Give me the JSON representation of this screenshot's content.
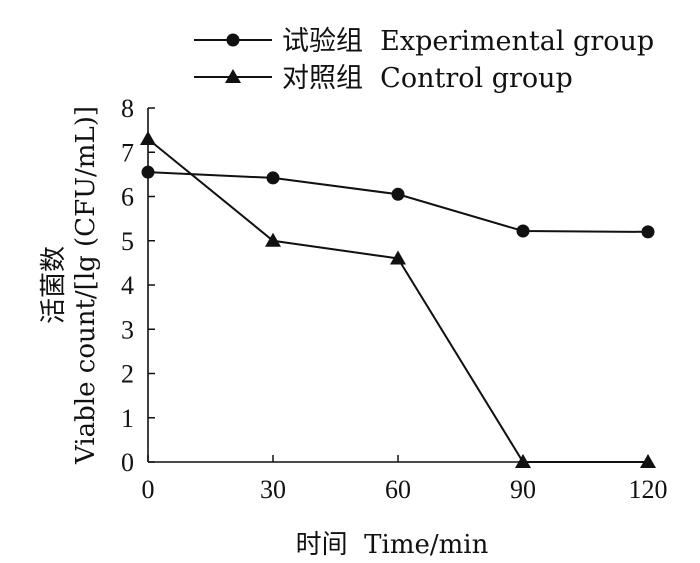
{
  "chart_data": {
    "type": "line",
    "x": [
      0,
      30,
      60,
      90,
      120
    ],
    "xticks": [
      "0",
      "30",
      "60",
      "90",
      "120"
    ],
    "yticks": [
      "0",
      "1",
      "2",
      "3",
      "4",
      "5",
      "6",
      "7",
      "8"
    ],
    "xlim": [
      0,
      120
    ],
    "ylim": [
      0,
      8
    ],
    "xlabel": "时间  Time/min",
    "ylabel_cn": "活菌数",
    "ylabel_en": "Viable count/[lg (CFU/mL)]",
    "grid": false,
    "legend_position": "top",
    "series": [
      {
        "name": "试验组  Experimental group",
        "marker": "circle",
        "color": "#111111",
        "values": [
          6.55,
          6.42,
          6.05,
          5.22,
          5.2
        ]
      },
      {
        "name": "对照组  Control group",
        "marker": "triangle",
        "color": "#111111",
        "values": [
          7.3,
          5.0,
          4.6,
          0,
          0
        ]
      }
    ]
  }
}
